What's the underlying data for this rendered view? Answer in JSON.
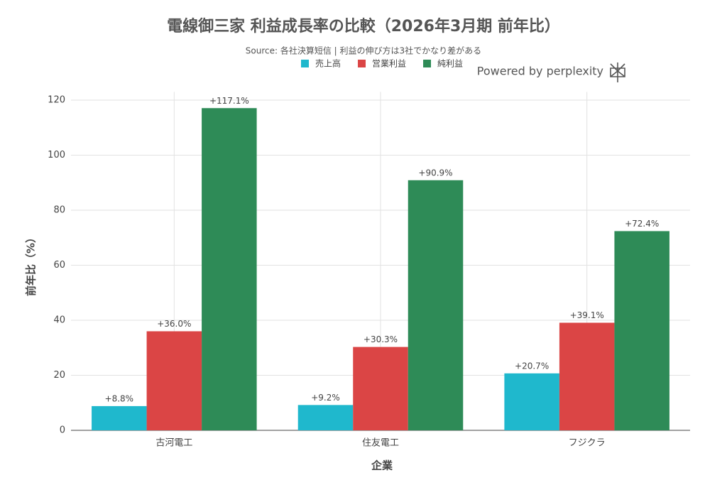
{
  "chart_data": {
    "type": "bar",
    "title": "電線御三家 利益成長率の比較（2026年3月期 前年比）",
    "subtitle": "Source: 各社決算短信 | 利益の伸び方は3社でかなり差がある",
    "watermark": "Powered by perplexity",
    "x_label": "企業",
    "y_label": "前年比（%）",
    "categories": [
      "古河電工",
      "住友電工",
      "フジクラ"
    ],
    "series": [
      {
        "name": "売上高",
        "color": "#1fb8cd",
        "values": [
          8.8,
          9.2,
          20.7
        ],
        "value_labels": [
          "+8.8%",
          "+9.2%",
          "+20.7%"
        ]
      },
      {
        "name": "営業利益",
        "color": "#db4545",
        "values": [
          36.0,
          30.3,
          39.1
        ],
        "value_labels": [
          "+36.0%",
          "+30.3%",
          "+39.1%"
        ]
      },
      {
        "name": "純利益",
        "color": "#2e8b57",
        "values": [
          117.1,
          90.9,
          72.4
        ],
        "value_labels": [
          "+117.1%",
          "+90.9%",
          "+72.4%"
        ]
      }
    ],
    "ylim": [
      0,
      123
    ],
    "yticks": [
      0,
      20,
      40,
      60,
      80,
      100,
      120
    ],
    "grid": true,
    "legend": "top"
  }
}
